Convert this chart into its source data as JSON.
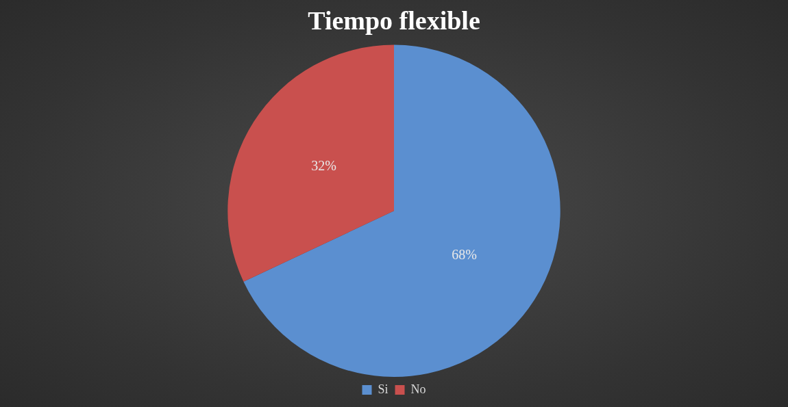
{
  "chart_data": {
    "type": "pie",
    "title": "Tiempo flexible",
    "categories": [
      "Si",
      "No"
    ],
    "values": [
      68,
      32
    ],
    "colors": [
      "#5b8fd0",
      "#c9504e"
    ],
    "value_labels": [
      "68%",
      "32%"
    ],
    "legend": "bottom"
  }
}
